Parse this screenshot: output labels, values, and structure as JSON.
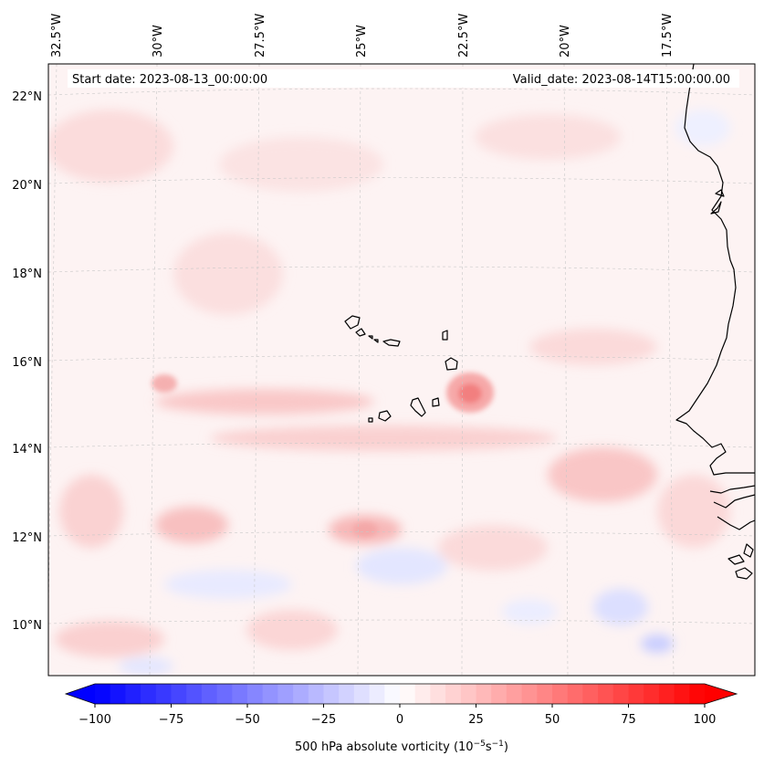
{
  "map": {
    "start_date_label": "Start date: 2023-08-13_00:00:00",
    "valid_date_label": "Valid_date: 2023-08-14T15:00:00.00",
    "longitude_labels": [
      "32.5°W",
      "30°W",
      "27.5°W",
      "25°W",
      "22.5°W",
      "20°W",
      "17.5°W"
    ],
    "latitude_labels": [
      "22°N",
      "20°N",
      "18°N",
      "16°N",
      "14°N",
      "12°N",
      "10°N"
    ],
    "land_fill": "none",
    "coastline_color": "#000000",
    "gridline_color": "#bbbbbb"
  },
  "colorbar": {
    "label_prefix": "500 hPa absolute vorticity (10",
    "label_exp1": "−5",
    "label_mid": "s",
    "label_exp2": "−1",
    "label_suffix": ")",
    "ticks": [
      "−100",
      "−75",
      "−50",
      "−25",
      "0",
      "25",
      "50",
      "75",
      "100"
    ],
    "vmin": -100,
    "vmax": 100,
    "levels": 40,
    "low_color": "#0000ff",
    "mid_color": "#ffffff",
    "high_color": "#ff0000"
  }
}
